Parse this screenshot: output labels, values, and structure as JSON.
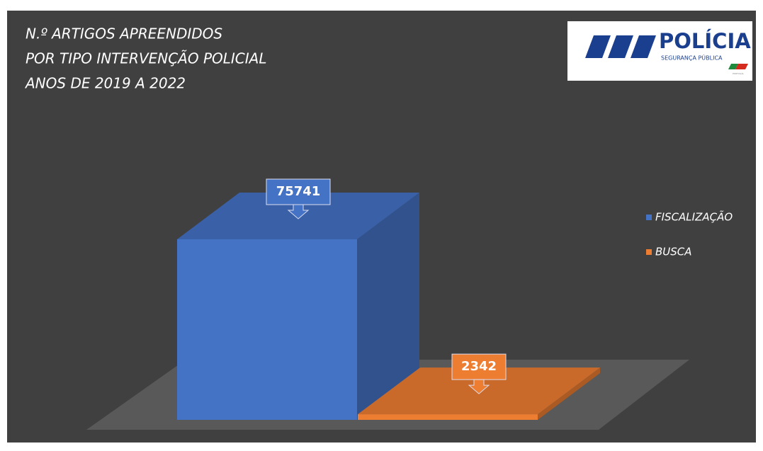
{
  "chart_data": {
    "type": "bar",
    "title": [
      "N.º ARTIGOS APREENDIDOS",
      "POR TIPO INTERVENÇÃO POLICIAL",
      "ANOS DE 2019 A 2022"
    ],
    "categories": [
      null
    ],
    "series": [
      {
        "name": "FISCALIZAÇÃO",
        "color": "#4472c4",
        "values": [
          75741
        ]
      },
      {
        "name": "BUSCA",
        "color": "#ed7d31",
        "values": [
          2342
        ]
      }
    ],
    "legend": "right"
  },
  "logo": {
    "name": "POLÍCIA",
    "subtitle": "SEGURANÇA PÚBLICA",
    "country": "PORTUGAL"
  }
}
